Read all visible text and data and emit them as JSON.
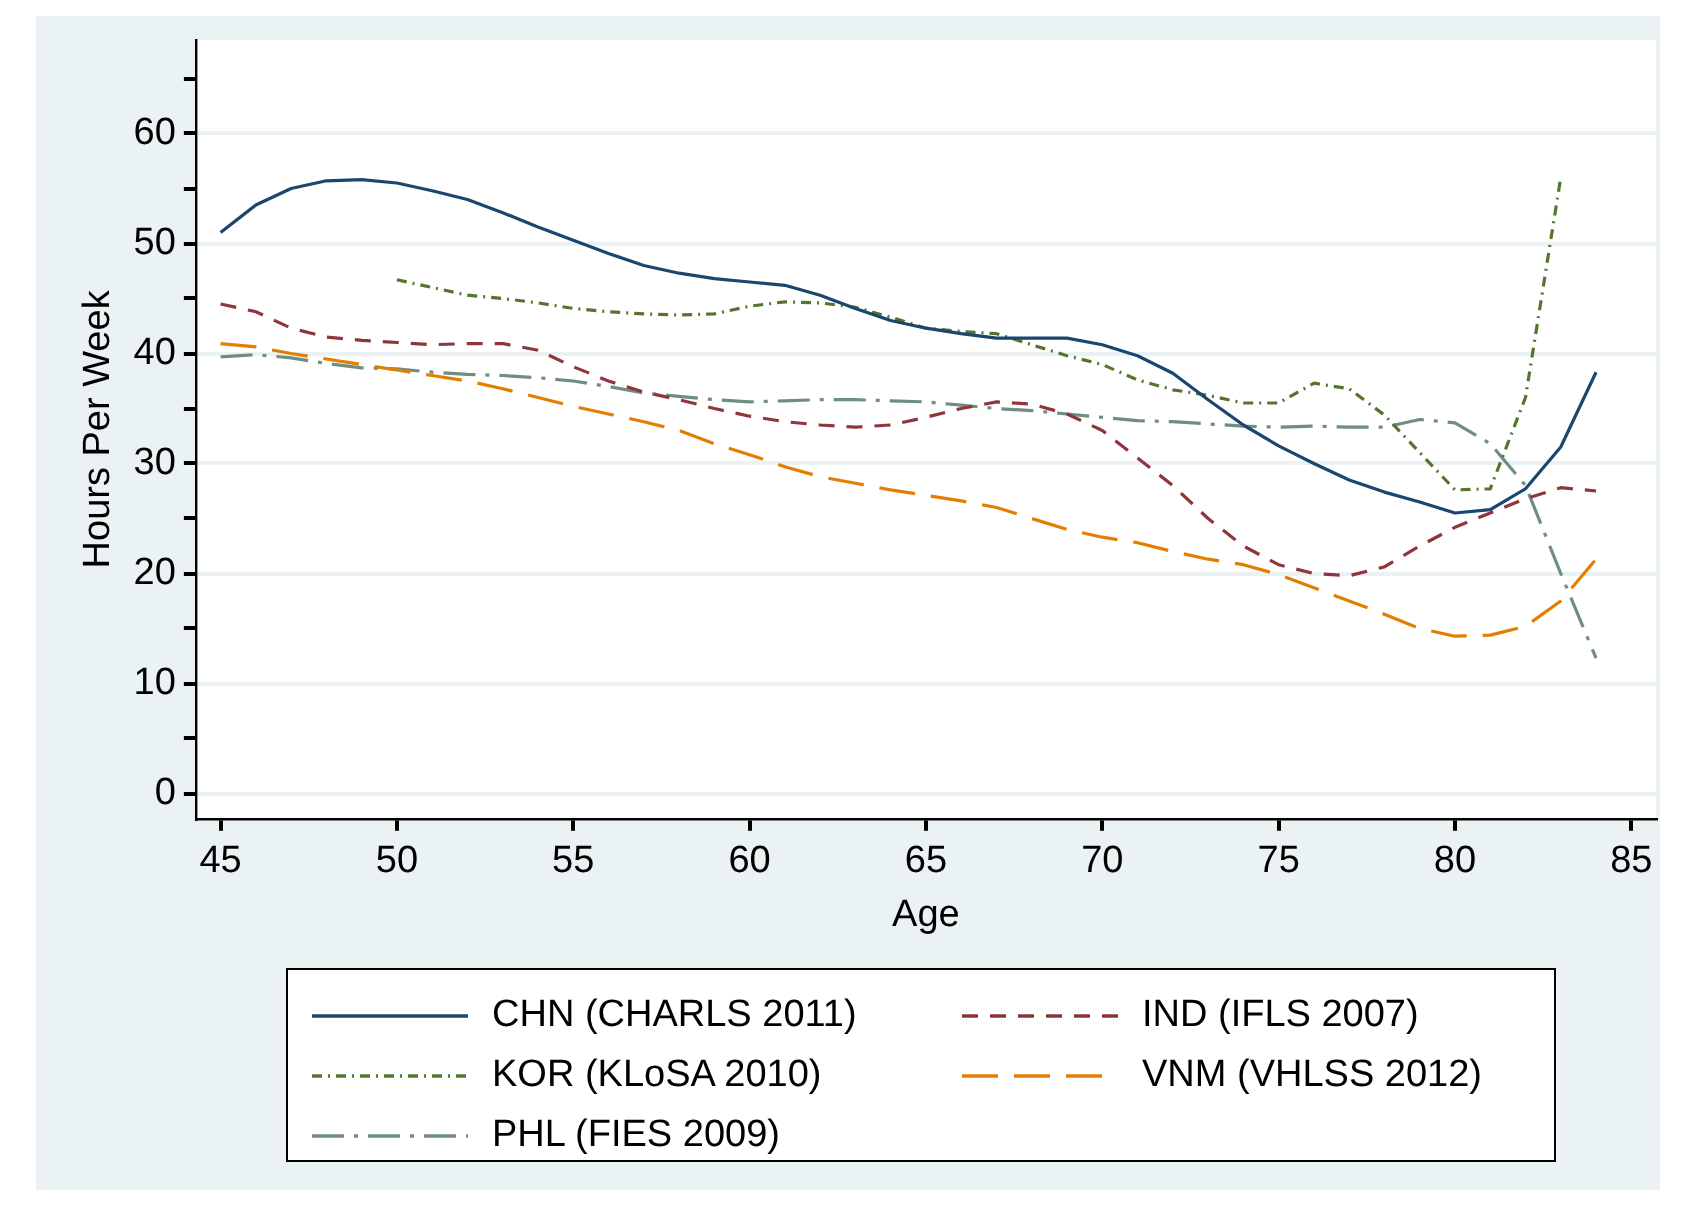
{
  "chart_data": {
    "type": "line",
    "xlabel": "Age",
    "ylabel": "Hours Per Week",
    "x": [
      45,
      46,
      47,
      48,
      49,
      50,
      51,
      52,
      53,
      54,
      55,
      56,
      57,
      58,
      59,
      60,
      61,
      62,
      63,
      64,
      65,
      66,
      67,
      68,
      69,
      70,
      71,
      72,
      73,
      74,
      75,
      76,
      77,
      78,
      79,
      80,
      81,
      82,
      83,
      84
    ],
    "xlim": [
      44.3,
      85.7
    ],
    "xticks": [
      45,
      50,
      55,
      60,
      65,
      70,
      75,
      80,
      85
    ],
    "ylim": [
      -2.3,
      68.5
    ],
    "yticks": [
      0,
      {
        "value": 5,
        "label": null
      },
      10,
      {
        "value": 15,
        "label": null
      },
      20,
      {
        "value": 25,
        "label": null
      },
      30,
      {
        "value": 35,
        "label": null
      },
      40,
      {
        "value": 45,
        "label": null
      },
      50,
      {
        "value": 55,
        "label": null
      },
      60,
      {
        "value": 65,
        "label": null
      }
    ],
    "grid": "y",
    "legend": "bottom",
    "marker": "none",
    "series": [
      {
        "name": "CHN (CHARLS 2011)",
        "color": "#1a476f",
        "line_style": "solid",
        "values": [
          51,
          53.5,
          55,
          55.7,
          55.8,
          55.5,
          54.8,
          54,
          52.8,
          51.5,
          50.3,
          49.1,
          48,
          47.3,
          46.8,
          46.5,
          46.2,
          45.3,
          44.1,
          43,
          42.3,
          41.8,
          41.4,
          41.4,
          41.4,
          40.8,
          39.8,
          38.2,
          35.8,
          33.5,
          31.6,
          30,
          28.5,
          27.4,
          26.5,
          25.5,
          25.8,
          27.7,
          31.5,
          38.3
        ]
      },
      {
        "name": "IND (IFLS 2007)",
        "color": "#90353b",
        "line_style": "dashed",
        "values": [
          44.5,
          43.8,
          42.3,
          41.5,
          41.2,
          41,
          40.8,
          40.9,
          40.9,
          40.3,
          38.8,
          37.5,
          36.5,
          35.8,
          35,
          34.3,
          33.8,
          33.5,
          33.3,
          33.5,
          34.2,
          35,
          35.6,
          35.4,
          34.5,
          33,
          30.5,
          28,
          25,
          22.5,
          20.8,
          20,
          19.8,
          20.6,
          22.5,
          24.2,
          25.5,
          26.8,
          27.8,
          27.5
        ]
      },
      {
        "name": "KOR (KLoSA 2010)",
        "color": "#55752f",
        "line_style": "dashed",
        "values": [
          null,
          null,
          null,
          null,
          null,
          46.7,
          46,
          45.3,
          45,
          44.6,
          44.1,
          43.8,
          43.6,
          43.5,
          43.6,
          44.3,
          44.7,
          44.6,
          44.2,
          43.3,
          42.3,
          42,
          41.8,
          40.8,
          39.8,
          39,
          37.6,
          36.7,
          36.2,
          35.5,
          35.5,
          37.3,
          36.8,
          34.4,
          31,
          27.6,
          27.7,
          36,
          56,
          null
        ]
      },
      {
        "name": "VNM (VHLSS 2012)",
        "color": "#e37e00",
        "line_style": "dashed",
        "values": [
          40.9,
          40.6,
          40,
          39.5,
          39,
          38.5,
          38,
          37.5,
          36.8,
          36,
          35.2,
          34.5,
          33.8,
          33,
          31.8,
          30.8,
          29.7,
          28.8,
          28.2,
          27.6,
          27.1,
          26.6,
          26,
          25,
          24,
          23.3,
          22.8,
          22,
          21.3,
          20.8,
          19.9,
          18.7,
          17.5,
          16.3,
          15,
          14.3,
          14.4,
          15.2,
          17.5,
          21.3
        ]
      },
      {
        "name": "PHL (FIES 2009)",
        "color": "#6e8e84",
        "line_style": "dashed",
        "values": [
          39.7,
          39.9,
          39.6,
          39.1,
          38.7,
          38.6,
          38.3,
          38.1,
          38,
          37.8,
          37.5,
          37,
          36.4,
          36.1,
          35.8,
          35.6,
          35.7,
          35.8,
          35.8,
          35.7,
          35.6,
          35.3,
          35,
          34.8,
          34.5,
          34.2,
          33.9,
          33.8,
          33.6,
          33.4,
          33.3,
          33.4,
          33.3,
          33.3,
          34,
          33.7,
          31.8,
          28,
          20,
          12.3
        ]
      }
    ]
  }
}
